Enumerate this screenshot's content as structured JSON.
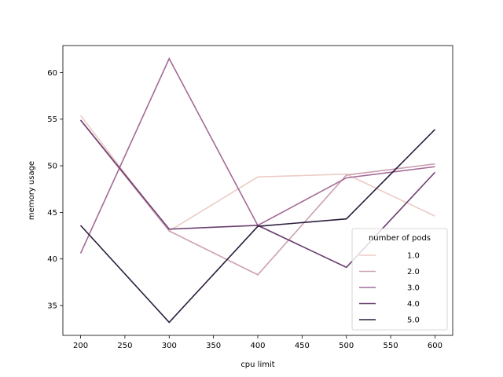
{
  "chart_data": {
    "type": "line",
    "xlabel": "cpu limit",
    "ylabel": "memory usage",
    "xlim": [
      180,
      620
    ],
    "ylim": [
      31.8,
      62.9
    ],
    "xticks": [
      200,
      250,
      300,
      350,
      400,
      450,
      500,
      550,
      600
    ],
    "yticks": [
      35,
      40,
      45,
      50,
      55,
      60
    ],
    "grid": false,
    "legend": {
      "title": "number of pods",
      "placement": "lower-right"
    },
    "x": [
      200,
      300,
      400,
      500,
      600
    ],
    "series": [
      {
        "name": "1.0",
        "color": "#ecccc5",
        "values": [
          55.4,
          43.0,
          48.8,
          49.1,
          44.6
        ]
      },
      {
        "name": "2.0",
        "color": "#cd9fb1",
        "values": [
          54.9,
          43.0,
          38.3,
          49.0,
          50.2
        ]
      },
      {
        "name": "3.0",
        "color": "#a46a97",
        "values": [
          40.6,
          61.5,
          43.6,
          48.7,
          49.9
        ]
      },
      {
        "name": "4.0",
        "color": "#6b3e6f",
        "values": [
          54.9,
          43.2,
          43.6,
          39.1,
          49.3
        ]
      },
      {
        "name": "5.0",
        "color": "#2c1e3e",
        "values": [
          43.6,
          33.2,
          43.5,
          44.3,
          53.9
        ]
      }
    ]
  }
}
